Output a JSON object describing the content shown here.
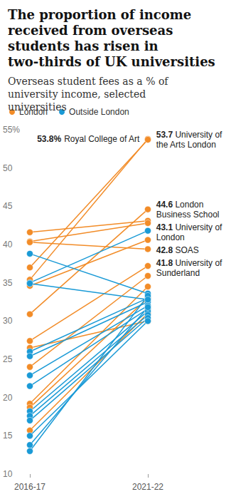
{
  "chart_data": {
    "type": "line",
    "title": "The proportion of income received from overseas students has risen in two-thirds of UK universities",
    "subtitle": "Overseas student fees as a % of university income, selected universities",
    "categories": [
      "2016-17",
      "2021-22"
    ],
    "ylim": [
      10,
      55
    ],
    "yticks": [
      10,
      15,
      20,
      25,
      30,
      35,
      40,
      45,
      50,
      {
        "value": 55,
        "label": "55%"
      }
    ],
    "grid": false,
    "legend": "top-left",
    "marker": "circle",
    "series": [
      {
        "name": "London",
        "color": "#f28c28",
        "values": [
          35.4,
          53.8
        ],
        "label": "Royal College of Art",
        "value_labels": [
          null,
          "53.8%"
        ]
      },
      {
        "name": "London",
        "color": "#f28c28",
        "values": [
          37.0,
          53.7
        ],
        "label": "University of the Arts London",
        "value_labels": [
          null,
          "53.7"
        ]
      },
      {
        "name": "London",
        "color": "#f28c28",
        "values": [
          30.9,
          44.6
        ],
        "label": "London Business School",
        "value_labels": [
          null,
          "44.6"
        ]
      },
      {
        "name": "London",
        "color": "#f28c28",
        "values": [
          41.6,
          43.1
        ],
        "label": "University of London",
        "value_labels": [
          null,
          "43.1"
        ]
      },
      {
        "name": "London",
        "color": "#f28c28",
        "values": [
          40.4,
          42.8
        ],
        "label": "SOAS",
        "value_labels": [
          null,
          "42.8"
        ]
      },
      {
        "name": "London",
        "color": "#f28c28",
        "values": [
          34.6,
          40.6
        ]
      },
      {
        "name": "London",
        "color": "#f28c28",
        "values": [
          40.3,
          39.4
        ]
      },
      {
        "name": "London",
        "color": "#f28c28",
        "values": [
          27.4,
          37.2
        ]
      },
      {
        "name": "London",
        "color": "#f28c28",
        "values": [
          24.0,
          35.9
        ]
      },
      {
        "name": "London",
        "color": "#f28c28",
        "values": [
          19.2,
          34.5
        ]
      },
      {
        "name": "London",
        "color": "#f28c28",
        "values": [
          18.7,
          33.0
        ]
      },
      {
        "name": "London",
        "color": "#f28c28",
        "values": [
          15.7,
          31.0
        ]
      },
      {
        "name": "London",
        "color": "#f28c28",
        "values": [
          26.5,
          30.0
        ]
      },
      {
        "name": "Outside London",
        "color": "#1a9ad6",
        "values": [
          35.0,
          41.8
        ],
        "label": "University of Sunderland",
        "value_labels": [
          null,
          "41.8"
        ]
      },
      {
        "name": "Outside London",
        "color": "#1a9ad6",
        "values": [
          38.8,
          33.6
        ]
      },
      {
        "name": "Outside London",
        "color": "#1a9ad6",
        "values": [
          26.0,
          33.0
        ]
      },
      {
        "name": "Outside London",
        "color": "#1a9ad6",
        "values": [
          25.4,
          32.5
        ]
      },
      {
        "name": "Outside London",
        "color": "#1a9ad6",
        "values": [
          22.9,
          32.0
        ]
      },
      {
        "name": "Outside London",
        "color": "#1a9ad6",
        "values": [
          21.5,
          31.6
        ]
      },
      {
        "name": "Outside London",
        "color": "#1a9ad6",
        "values": [
          18.2,
          31.3
        ]
      },
      {
        "name": "Outside London",
        "color": "#1a9ad6",
        "values": [
          17.6,
          30.8
        ]
      },
      {
        "name": "Outside London",
        "color": "#1a9ad6",
        "values": [
          17.0,
          30.4
        ]
      },
      {
        "name": "Outside London",
        "color": "#1a9ad6",
        "values": [
          15.0,
          30.0
        ]
      },
      {
        "name": "Outside London",
        "color": "#1a9ad6",
        "values": [
          13.8,
          31.8
        ]
      },
      {
        "name": "Outside London",
        "color": "#1a9ad6",
        "values": [
          13.0,
          33.3
        ]
      },
      {
        "name": "Outside London",
        "color": "#1a9ad6",
        "values": [
          34.9,
          32.8
        ]
      }
    ]
  }
}
